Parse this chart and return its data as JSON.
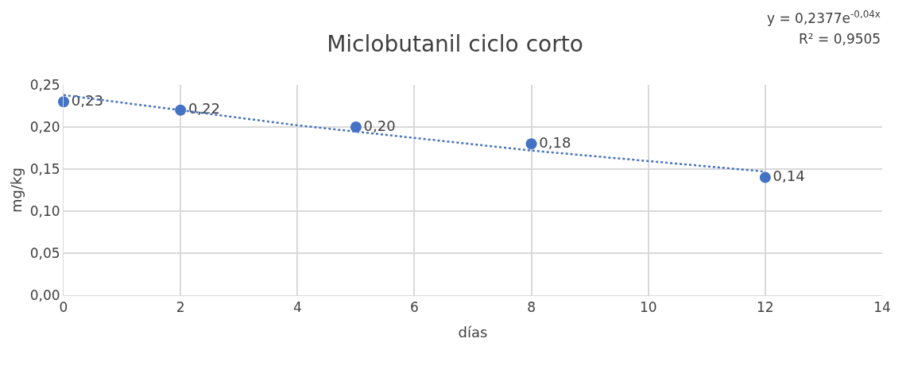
{
  "chart_data": {
    "type": "scatter",
    "title": "Miclobutanil ciclo corto",
    "xlabel": "días",
    "ylabel": "mg/kg",
    "x": [
      0,
      2,
      5,
      8,
      12
    ],
    "series": [
      {
        "color": "#4472c4",
        "values": [
          0.23,
          0.22,
          0.2,
          0.18,
          0.14
        ],
        "value_labels": [
          "0,23",
          "0,22",
          "0,20",
          "0,18",
          "0,14"
        ],
        "marker": "circle"
      },
      {
        "type": "line",
        "color": "#4472c4",
        "x": [
          0,
          4,
          8,
          12
        ],
        "values": [
          0.238,
          0.202,
          0.172,
          0.147
        ],
        "line_style": "dotted",
        "marker": "none"
      }
    ],
    "annotations": [
      "y = 0,2377e$^{-0,04x}$",
      "R² = 0,9505"
    ],
    "xlim": [
      0,
      14
    ],
    "xticks": [
      0,
      2,
      4,
      6,
      8,
      10,
      12,
      14
    ],
    "ylim": [
      0,
      0.25
    ],
    "yticks": [
      {
        "value": 0,
        "label": "0,00"
      },
      {
        "value": 0.05,
        "label": "0,05"
      },
      {
        "value": 0.1,
        "label": "0,10"
      },
      {
        "value": 0.15,
        "label": "0,15"
      },
      {
        "value": 0.2,
        "label": "0,20"
      },
      {
        "value": 0.25,
        "label": "0,25"
      }
    ],
    "grid": true
  }
}
